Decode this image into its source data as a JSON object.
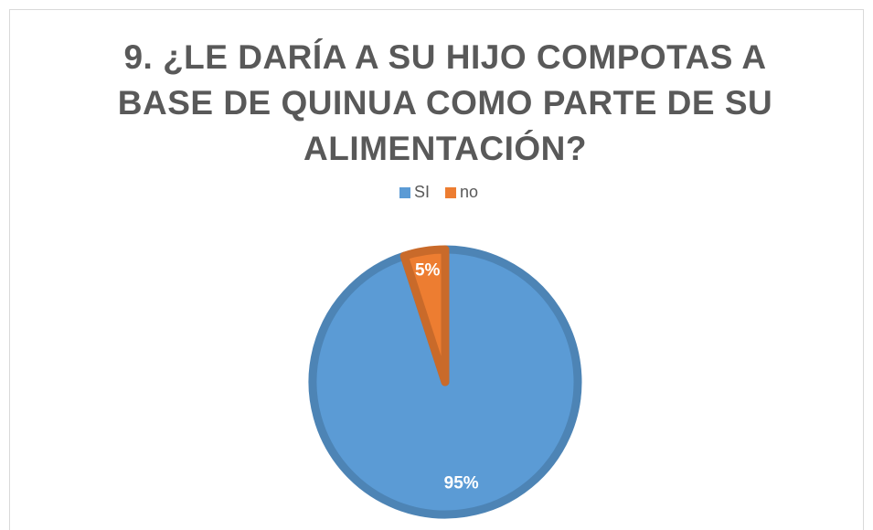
{
  "chart_data": {
    "type": "pie",
    "title": "9. ¿LE DARÍA A SU HIJO COMPOTAS A BASE DE QUINUA COMO PARTE DE SU ALIMENTACIÓN?",
    "categories": [
      "SI",
      "no"
    ],
    "values": [
      95,
      5
    ],
    "value_labels": [
      "95%",
      "5%"
    ],
    "colors": [
      "#5b9bd5",
      "#ed7d31"
    ],
    "legend": "top"
  }
}
